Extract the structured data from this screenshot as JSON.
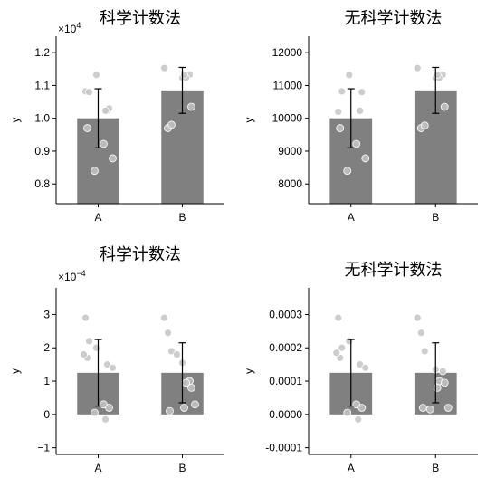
{
  "chart_data": [
    {
      "type": "bar",
      "title": "科学计数法",
      "ylabel": "y",
      "categories": [
        "A",
        "B"
      ],
      "values": [
        10000,
        10850
      ],
      "errors": [
        900,
        700
      ],
      "ylim": [
        7400,
        12500
      ],
      "yticks": [
        8000,
        9000,
        10000,
        11000,
        12000
      ],
      "ytick_labels": [
        "0.8",
        "0.9",
        "1.0",
        "1.1",
        "1.2"
      ],
      "offset_base": "×10",
      "offset_exp": "4",
      "points": [
        [
          10820,
          10800,
          11320,
          9700,
          10230,
          8780,
          9220,
          10300,
          8400,
          10230
        ],
        [
          11530,
          9700,
          9800,
          11230,
          11330,
          11230,
          10350,
          11330
        ]
      ]
    },
    {
      "type": "bar",
      "title": "无科学计数法",
      "ylabel": "y",
      "categories": [
        "A",
        "B"
      ],
      "values": [
        10000,
        10850
      ],
      "errors": [
        900,
        700
      ],
      "ylim": [
        7400,
        12500
      ],
      "yticks": [
        8000,
        9000,
        10000,
        11000,
        12000
      ],
      "ytick_labels": [
        "8000",
        "9000",
        "10000",
        "11000",
        "12000"
      ],
      "offset_base": "",
      "offset_exp": "",
      "points": [
        [
          10200,
          10820,
          11320,
          9700,
          10230,
          8780,
          9220,
          10800,
          8400
        ],
        [
          11530,
          9700,
          9780,
          11230,
          11330,
          11230,
          10350,
          11330
        ]
      ]
    },
    {
      "type": "bar",
      "title": "科学计数法",
      "ylabel": "y",
      "categories": [
        "A",
        "B"
      ],
      "values": [
        0.000125,
        0.000125
      ],
      "errors": [
        0.0001,
        9e-05
      ],
      "ylim": [
        -0.00012,
        0.00038
      ],
      "yticks": [
        -0.0001,
        0,
        0.0001,
        0.0002,
        0.0003
      ],
      "ytick_labels": [
        "−1",
        "0",
        "1",
        "2",
        "3"
      ],
      "offset_base": "×10",
      "offset_exp": "−4",
      "points": [
        [
          0.00029,
          0.00022,
          0.0002,
          0.00017,
          0.00015,
          0.00014,
          3e-05,
          2e-05,
          5e-06,
          -1.5e-05,
          0.00018
        ],
        [
          0.00029,
          0.000245,
          0.00019,
          0.000155,
          0.0001,
          9.5e-05,
          8e-05,
          2e-05,
          1e-05,
          3e-05,
          0.00018
        ]
      ]
    },
    {
      "type": "bar",
      "title": "无科学计数法",
      "ylabel": "y",
      "categories": [
        "A",
        "B"
      ],
      "values": [
        0.000125,
        0.000125
      ],
      "errors": [
        0.0001,
        9e-05
      ],
      "ylim": [
        -0.00012,
        0.00038
      ],
      "yticks": [
        -0.0001,
        0,
        0.0001,
        0.0002,
        0.0003
      ],
      "ytick_labels": [
        "-0.0001",
        "0.0000",
        "0.0001",
        "0.0002",
        "0.0003"
      ],
      "offset_base": "",
      "offset_exp": "",
      "points": [
        [
          0.00029,
          0.0002,
          0.00022,
          0.00017,
          0.00015,
          0.00014,
          3e-05,
          2e-05,
          5e-06,
          -1.5e-05,
          0.000185
        ],
        [
          0.00029,
          0.000245,
          0.00019,
          0.000135,
          0.00013,
          0.0001,
          9.5e-05,
          8e-05,
          2e-05,
          2e-05,
          1.5e-05
        ]
      ]
    }
  ],
  "colors": {
    "bar": "#808080",
    "point": "#c4c4c4",
    "point_edge": "#ffffff",
    "errorbar": "#000000"
  }
}
